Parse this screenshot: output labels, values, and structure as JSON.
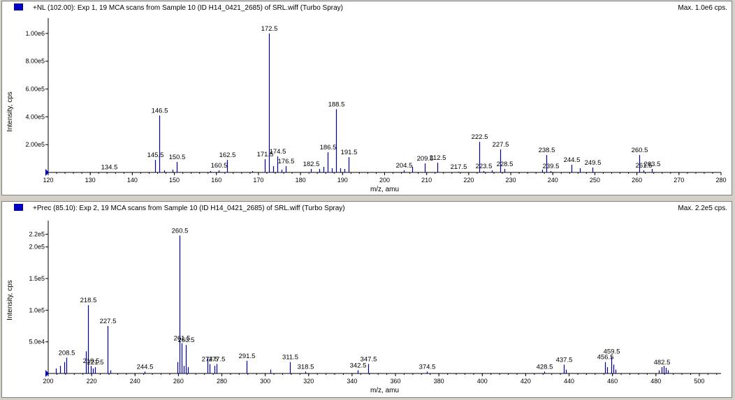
{
  "chart_data": [
    {
      "type": "bar",
      "title": "+NL (102.00): Exp 1, 19 MCA scans from Sample 10 (ID H14_0421_2685) of SRL.wiff (Turbo Spray)",
      "max_label": "Max. 1.0e6 cps.",
      "xlabel": "m/z, amu",
      "ylabel": "Intensity, cps",
      "xlim": [
        120,
        280
      ],
      "ylim": [
        0,
        1080000
      ],
      "xticks": [
        120,
        130,
        140,
        150,
        160,
        170,
        180,
        190,
        200,
        210,
        220,
        230,
        240,
        250,
        260,
        270,
        280
      ],
      "yticks": [
        {
          "value": 200000,
          "label": "2.00e5"
        },
        {
          "value": 400000,
          "label": "4.00e5"
        },
        {
          "value": 600000,
          "label": "6.00e5"
        },
        {
          "value": 800000,
          "label": "8.00e5"
        },
        {
          "value": 1000000,
          "label": "1.00e6"
        }
      ],
      "peaks": [
        {
          "x": 134.5,
          "y": 3000,
          "label": "134.5"
        },
        {
          "x": 145.5,
          "y": 90000,
          "label": "145.5"
        },
        {
          "x": 146.5,
          "y": 410000,
          "label": "146.5"
        },
        {
          "x": 147.5,
          "y": 15000,
          "label": ""
        },
        {
          "x": 149.5,
          "y": 20000,
          "label": ""
        },
        {
          "x": 150.5,
          "y": 75000,
          "label": "150.5"
        },
        {
          "x": 158.5,
          "y": 10000,
          "label": ""
        },
        {
          "x": 160.5,
          "y": 15000,
          "label": "160.5"
        },
        {
          "x": 162.5,
          "y": 90000,
          "label": "162.5"
        },
        {
          "x": 168.5,
          "y": 10000,
          "label": ""
        },
        {
          "x": 171.5,
          "y": 95000,
          "label": "171.5"
        },
        {
          "x": 172.5,
          "y": 1000000,
          "label": "172.5"
        },
        {
          "x": 173.5,
          "y": 45000,
          "label": ""
        },
        {
          "x": 174.5,
          "y": 115000,
          "label": "174.5"
        },
        {
          "x": 175.5,
          "y": 20000,
          "label": ""
        },
        {
          "x": 176.5,
          "y": 45000,
          "label": "176.5"
        },
        {
          "x": 182.5,
          "y": 25000,
          "label": "182.5"
        },
        {
          "x": 184.5,
          "y": 25000,
          "label": ""
        },
        {
          "x": 185.5,
          "y": 40000,
          "label": ""
        },
        {
          "x": 186.5,
          "y": 145000,
          "label": "186.5"
        },
        {
          "x": 187.5,
          "y": 30000,
          "label": ""
        },
        {
          "x": 188.5,
          "y": 455000,
          "label": "188.5"
        },
        {
          "x": 189.5,
          "y": 30000,
          "label": ""
        },
        {
          "x": 190.5,
          "y": 25000,
          "label": ""
        },
        {
          "x": 191.5,
          "y": 110000,
          "label": "191.5"
        },
        {
          "x": 204.5,
          "y": 15000,
          "label": "204.5"
        },
        {
          "x": 206.5,
          "y": 40000,
          "label": ""
        },
        {
          "x": 209.5,
          "y": 65000,
          "label": "209.5"
        },
        {
          "x": 212.5,
          "y": 70000,
          "label": "212.5"
        },
        {
          "x": 217.5,
          "y": 5000,
          "label": "217.5"
        },
        {
          "x": 222.5,
          "y": 220000,
          "label": "222.5"
        },
        {
          "x": 223.5,
          "y": 10000,
          "label": "223.5"
        },
        {
          "x": 225.5,
          "y": 15000,
          "label": ""
        },
        {
          "x": 227.5,
          "y": 165000,
          "label": "227.5"
        },
        {
          "x": 228.5,
          "y": 25000,
          "label": "228.5"
        },
        {
          "x": 237.5,
          "y": 20000,
          "label": ""
        },
        {
          "x": 238.5,
          "y": 125000,
          "label": "238.5"
        },
        {
          "x": 239.5,
          "y": 10000,
          "label": "239.5"
        },
        {
          "x": 244.5,
          "y": 55000,
          "label": "244.5"
        },
        {
          "x": 246.5,
          "y": 30000,
          "label": ""
        },
        {
          "x": 249.5,
          "y": 35000,
          "label": "249.5"
        },
        {
          "x": 260.5,
          "y": 125000,
          "label": "260.5"
        },
        {
          "x": 261.5,
          "y": 15000,
          "label": "261.5"
        },
        {
          "x": 263.5,
          "y": 25000,
          "label": "263.5"
        }
      ]
    },
    {
      "type": "bar",
      "title": "+Prec (85.10): Exp 2, 19 MCA scans from Sample 10 (ID H14_0421_2685) of SRL.wiff (Turbo Spray)",
      "max_label": "Max. 2.2e5 cps.",
      "xlabel": "m/z, amu",
      "ylabel": "Intensity, cps",
      "xlim": [
        200,
        510
      ],
      "ylim": [
        0,
        235000
      ],
      "xticks": [
        200,
        220,
        240,
        260,
        280,
        300,
        320,
        340,
        360,
        380,
        400,
        420,
        440,
        460,
        480,
        500
      ],
      "yticks": [
        {
          "value": 50000,
          "label": "5.0e4"
        },
        {
          "value": 100000,
          "label": "1.0e5"
        },
        {
          "value": 150000,
          "label": "1.5e5"
        },
        {
          "value": 200000,
          "label": "2.0e5"
        },
        {
          "value": 220000,
          "label": "2.2e5"
        }
      ],
      "peaks": [
        {
          "x": 203.5,
          "y": 8000,
          "label": ""
        },
        {
          "x": 205.5,
          "y": 12000,
          "label": ""
        },
        {
          "x": 207.5,
          "y": 18000,
          "label": ""
        },
        {
          "x": 208.5,
          "y": 25000,
          "label": "208.5"
        },
        {
          "x": 217.5,
          "y": 35000,
          "label": ""
        },
        {
          "x": 218.5,
          "y": 108000,
          "label": "218.5"
        },
        {
          "x": 219.5,
          "y": 12000,
          "label": "219.5"
        },
        {
          "x": 220.5,
          "y": 8000,
          "label": ""
        },
        {
          "x": 221.5,
          "y": 10000,
          "label": "221.5"
        },
        {
          "x": 227.5,
          "y": 75000,
          "label": "227.5"
        },
        {
          "x": 228.5,
          "y": 5000,
          "label": ""
        },
        {
          "x": 244.5,
          "y": 3000,
          "label": "244.5"
        },
        {
          "x": 259.5,
          "y": 18000,
          "label": ""
        },
        {
          "x": 260.5,
          "y": 218000,
          "label": "260.5"
        },
        {
          "x": 261.5,
          "y": 48000,
          "label": "261.5"
        },
        {
          "x": 262.5,
          "y": 12000,
          "label": ""
        },
        {
          "x": 263.5,
          "y": 45000,
          "label": "263.5"
        },
        {
          "x": 264.5,
          "y": 10000,
          "label": ""
        },
        {
          "x": 273.5,
          "y": 25000,
          "label": ""
        },
        {
          "x": 274.5,
          "y": 15000,
          "label": "274.5"
        },
        {
          "x": 276.5,
          "y": 12000,
          "label": ""
        },
        {
          "x": 277.5,
          "y": 15000,
          "label": "277.5"
        },
        {
          "x": 291.5,
          "y": 20000,
          "label": "291.5"
        },
        {
          "x": 302.5,
          "y": 6000,
          "label": ""
        },
        {
          "x": 311.5,
          "y": 18000,
          "label": "311.5"
        },
        {
          "x": 318.5,
          "y": 3000,
          "label": "318.5"
        },
        {
          "x": 342.5,
          "y": 5000,
          "label": "342.5"
        },
        {
          "x": 347.5,
          "y": 15000,
          "label": "347.5"
        },
        {
          "x": 374.5,
          "y": 3000,
          "label": "374.5"
        },
        {
          "x": 428.5,
          "y": 3000,
          "label": "428.5"
        },
        {
          "x": 437.5,
          "y": 14000,
          "label": "437.5"
        },
        {
          "x": 438.5,
          "y": 6000,
          "label": ""
        },
        {
          "x": 456.5,
          "y": 18000,
          "label": "456.5"
        },
        {
          "x": 457.5,
          "y": 10000,
          "label": ""
        },
        {
          "x": 459.5,
          "y": 27000,
          "label": "459.5"
        },
        {
          "x": 460.5,
          "y": 14000,
          "label": ""
        },
        {
          "x": 461.5,
          "y": 6000,
          "label": ""
        },
        {
          "x": 481.5,
          "y": 5000,
          "label": ""
        },
        {
          "x": 482.5,
          "y": 10000,
          "label": "482.5"
        },
        {
          "x": 483.5,
          "y": 12000,
          "label": ""
        },
        {
          "x": 484.5,
          "y": 9000,
          "label": ""
        },
        {
          "x": 485.5,
          "y": 5000,
          "label": ""
        }
      ]
    }
  ],
  "colors": {
    "peak": "#0000a0",
    "axis": "#000000",
    "marker": "#0000c8"
  }
}
